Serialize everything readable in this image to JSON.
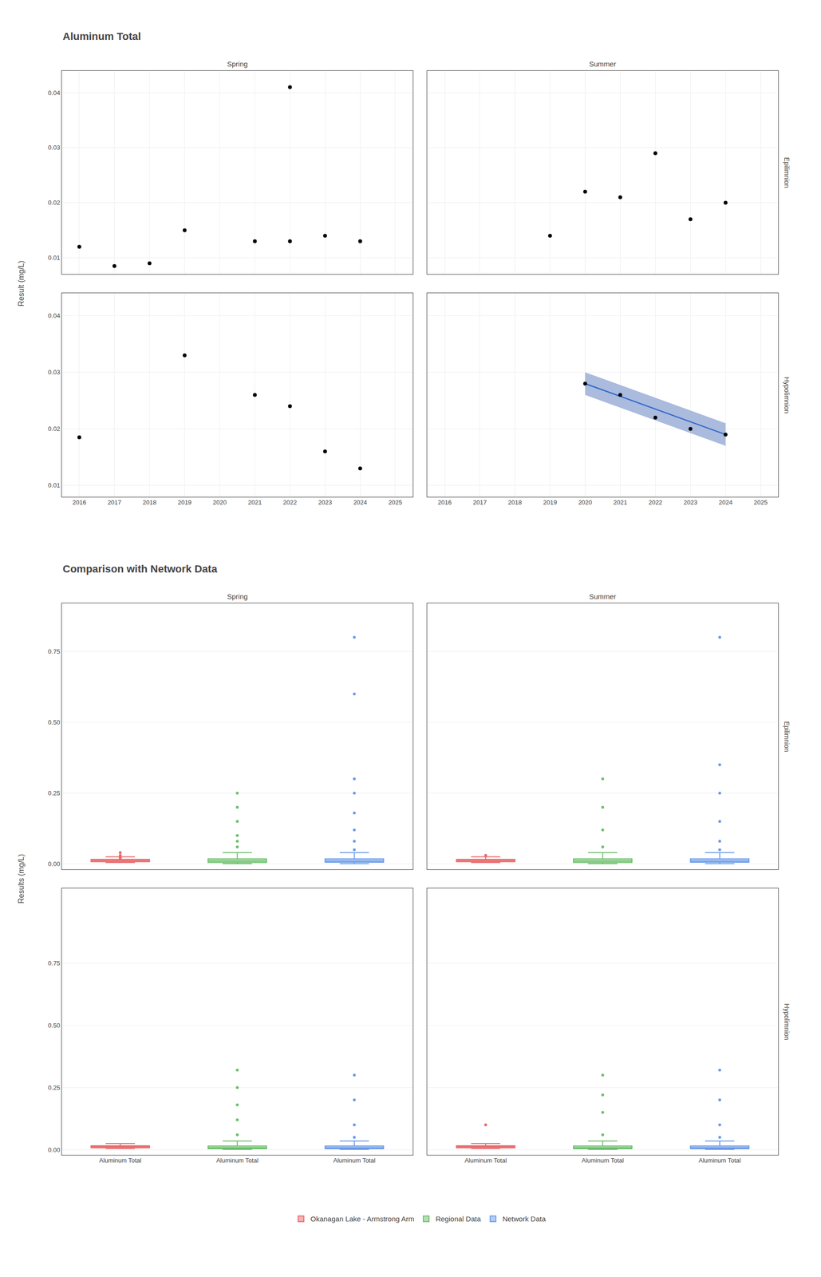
{
  "chart_data": [
    {
      "type": "scatter",
      "title": "Aluminum Total",
      "y_label": "Result (mg/L)",
      "columns": [
        "Spring",
        "Summer"
      ],
      "rows": [
        "Epilimnion",
        "Hypolimnion"
      ],
      "xlim": [
        2015.5,
        2025.5
      ],
      "xticks": [
        2016,
        2017,
        2018,
        2019,
        2020,
        2021,
        2022,
        2023,
        2024,
        2025
      ],
      "grid": true,
      "panels": [
        {
          "column": "Spring",
          "row": "Epilimnion",
          "tick_labels": "y",
          "ylim": [
            0.007,
            0.044
          ],
          "yticks": [
            0.01,
            0.02,
            0.03,
            0.04
          ],
          "series": [
            {
              "x": [
                2016,
                2017,
                2018,
                2019,
                2021,
                2022,
                2023,
                2024
              ],
              "values": [
                0.012,
                0.0085,
                0.009,
                0.015,
                0.013,
                0.013,
                0.014,
                0.013
              ],
              "color": "black"
            },
            {
              "x": [
                2022
              ],
              "values": [
                0.041
              ],
              "color": "black"
            }
          ]
        },
        {
          "column": "Summer",
          "row": "Epilimnion",
          "tick_labels": false,
          "ylim": [
            0.007,
            0.044
          ],
          "yticks": [
            0.01,
            0.02,
            0.03,
            0.04
          ],
          "series": [
            {
              "x": [
                2019,
                2020,
                2021,
                2022,
                2023,
                2024
              ],
              "values": [
                0.014,
                0.022,
                0.021,
                0.029,
                0.017,
                0.02
              ],
              "color": "black"
            }
          ]
        },
        {
          "column": "Spring",
          "row": "Hypolimnion",
          "ylim": [
            0.008,
            0.044
          ],
          "yticks": [
            0.01,
            0.02,
            0.03,
            0.04
          ],
          "series": [
            {
              "x": [
                2016,
                2019,
                2021,
                2022,
                2023,
                2024
              ],
              "values": [
                0.0185,
                0.033,
                0.026,
                0.024,
                0.016,
                0.013
              ],
              "color": "black"
            }
          ]
        },
        {
          "column": "Summer",
          "row": "Hypolimnion",
          "tick_labels": "x",
          "ylim": [
            0.008,
            0.044
          ],
          "yticks": [
            0.01,
            0.02,
            0.03,
            0.04
          ],
          "series": [
            {
              "type": "line",
              "x": [
                2020,
                2024
              ],
              "values": [
                0.028,
                0.019
              ],
              "color": "#3366cc",
              "band_lower": [
                0.026,
                0.017
              ],
              "band_upper": [
                0.03,
                0.021
              ],
              "band_color": "#aabbdd"
            },
            {
              "x": [
                2020,
                2021,
                2022,
                2023,
                2024
              ],
              "values": [
                0.028,
                0.026,
                0.022,
                0.02,
                0.019
              ],
              "color": "black"
            }
          ]
        }
      ]
    },
    {
      "type": "box",
      "title": "Comparison with Network Data",
      "y_label": "Results (mg/L)",
      "columns": [
        "Spring",
        "Summer"
      ],
      "rows": [
        "Epilimnion",
        "Hypolimnion"
      ],
      "categories": [
        "Aluminum Total",
        "Aluminum Total",
        "Aluminum Total"
      ],
      "grid": true,
      "legend": "bottom",
      "panels": [
        {
          "column": "Spring",
          "row": "Epilimnion",
          "tick_labels": "y",
          "ylim": [
            -0.02,
            0.92
          ],
          "yticks": [
            {
              "value": 0,
              "label": "0.00"
            },
            0.25,
            {
              "value": 0.5,
              "label": "0.50"
            },
            0.75
          ],
          "series": [
            {
              "name": "Okanagan Lake - Armstrong Arm",
              "color": "#e8696b",
              "median": 0.012,
              "q1": 0.008,
              "q3": 0.016,
              "whisker_low": 0.005,
              "whisker_high": 0.025,
              "fliers": [
                0.04,
                0.03,
                0.025,
                0.022,
                0.018
              ]
            },
            {
              "name": "Regional Data",
              "color": "#6bbf6b",
              "median": 0.01,
              "q1": 0.005,
              "q3": 0.018,
              "whisker_low": 0.001,
              "whisker_high": 0.04,
              "fliers": [
                0.06,
                0.08,
                0.1,
                0.15,
                0.2,
                0.25
              ]
            },
            {
              "name": "Network Data",
              "color": "#6b9be8",
              "median": 0.01,
              "q1": 0.006,
              "q3": 0.018,
              "whisker_low": 0.001,
              "whisker_high": 0.04,
              "fliers": [
                0.05,
                0.08,
                0.12,
                0.18,
                0.25,
                0.3,
                0.6,
                0.8
              ]
            }
          ]
        },
        {
          "column": "Summer",
          "row": "Epilimnion",
          "tick_labels": false,
          "ylim": [
            -0.02,
            0.92
          ],
          "yticks": [
            {
              "value": 0,
              "label": "0.00"
            },
            0.25,
            {
              "value": 0.5,
              "label": "0.50"
            },
            0.75
          ],
          "series": [
            {
              "name": "Okanagan Lake - Armstrong Arm",
              "color": "#e8696b",
              "median": 0.012,
              "q1": 0.008,
              "q3": 0.016,
              "whisker_low": 0.005,
              "whisker_high": 0.025,
              "fliers": [
                0.03
              ]
            },
            {
              "name": "Regional Data",
              "color": "#6bbf6b",
              "median": 0.01,
              "q1": 0.005,
              "q3": 0.018,
              "whisker_low": 0.001,
              "whisker_high": 0.04,
              "fliers": [
                0.06,
                0.12,
                0.2,
                0.3
              ]
            },
            {
              "name": "Network Data",
              "color": "#6b9be8",
              "median": 0.01,
              "q1": 0.006,
              "q3": 0.018,
              "whisker_low": 0.001,
              "whisker_high": 0.04,
              "fliers": [
                0.05,
                0.08,
                0.15,
                0.25,
                0.35,
                0.8
              ]
            }
          ]
        },
        {
          "column": "Spring",
          "row": "Hypolimnion",
          "ylim": [
            -0.02,
            1.05
          ],
          "yticks": [
            {
              "value": 0,
              "label": "0.00"
            },
            0.25,
            {
              "value": 0.5,
              "label": "0.50"
            },
            0.75
          ],
          "series": [
            {
              "name": "Okanagan Lake - Armstrong Arm",
              "color": "#e8696b",
              "median": 0.012,
              "q1": 0.008,
              "q3": 0.016,
              "whisker_low": 0.005,
              "whisker_high": 0.025,
              "fliers": []
            },
            {
              "name": "Regional Data",
              "color": "#6bbf6b",
              "median": 0.008,
              "q1": 0.004,
              "q3": 0.015,
              "whisker_low": 0.001,
              "whisker_high": 0.035,
              "fliers": [
                0.06,
                0.12,
                0.18,
                0.25,
                0.32
              ]
            },
            {
              "name": "Network Data",
              "color": "#6b9be8",
              "median": 0.008,
              "q1": 0.004,
              "q3": 0.015,
              "whisker_low": 0.001,
              "whisker_high": 0.035,
              "fliers": [
                0.05,
                0.1,
                0.2,
                0.3
              ]
            }
          ]
        },
        {
          "column": "Summer",
          "row": "Hypolimnion",
          "tick_labels": "x",
          "ylim": [
            -0.02,
            1.05
          ],
          "yticks": [
            {
              "value": 0,
              "label": "0.00"
            },
            0.25,
            {
              "value": 0.5,
              "label": "0.50"
            },
            0.75
          ],
          "series": [
            {
              "name": "Okanagan Lake - Armstrong Arm",
              "color": "#e8696b",
              "median": 0.012,
              "q1": 0.008,
              "q3": 0.016,
              "whisker_low": 0.005,
              "whisker_high": 0.025,
              "fliers": [
                0.1
              ]
            },
            {
              "name": "Regional Data",
              "color": "#6bbf6b",
              "median": 0.008,
              "q1": 0.004,
              "q3": 0.015,
              "whisker_low": 0.001,
              "whisker_high": 0.035,
              "fliers": [
                0.06,
                0.15,
                0.22,
                0.3
              ]
            },
            {
              "name": "Network Data",
              "color": "#6b9be8",
              "median": 0.008,
              "q1": 0.004,
              "q3": 0.015,
              "whisker_low": 0.001,
              "whisker_high": 0.035,
              "fliers": [
                0.05,
                0.1,
                0.2,
                0.32
              ]
            }
          ]
        }
      ]
    }
  ]
}
